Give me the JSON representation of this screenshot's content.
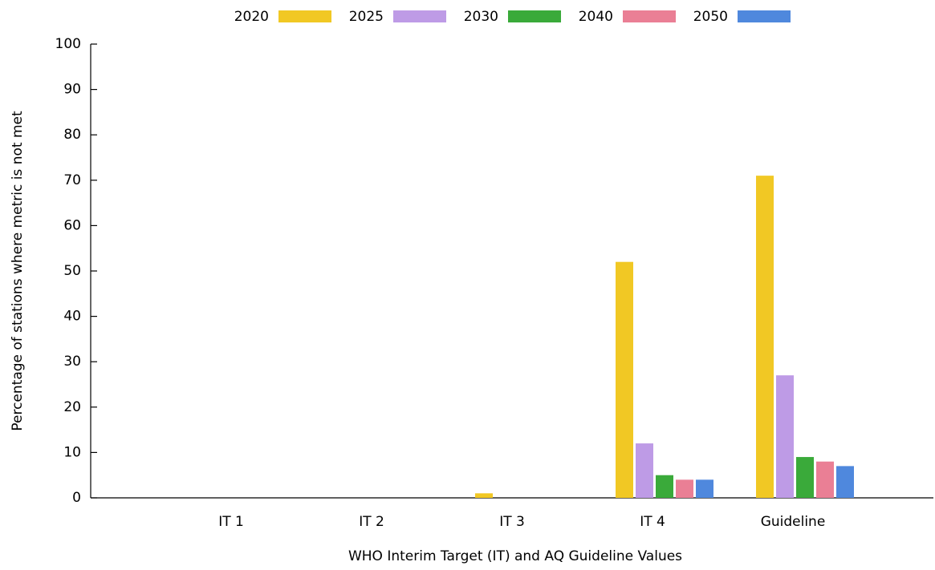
{
  "chart_data": {
    "type": "bar",
    "xlabel": "WHO Interim Target (IT) and AQ Guideline Values",
    "ylabel": "Percentage of stations where metric is not met",
    "categories": [
      "IT 1",
      "IT 2",
      "IT 3",
      "IT 4",
      "Guideline"
    ],
    "series": [
      {
        "name": "2020",
        "color": "#f1c824",
        "values": [
          0,
          0,
          1,
          52,
          71
        ]
      },
      {
        "name": "2025",
        "color": "#be9be6",
        "values": [
          0,
          0,
          0,
          12,
          27
        ]
      },
      {
        "name": "2030",
        "color": "#3aaa3a",
        "values": [
          0,
          0,
          0,
          5,
          9
        ]
      },
      {
        "name": "2040",
        "color": "#ea7f95",
        "values": [
          0,
          0,
          0,
          4,
          8
        ]
      },
      {
        "name": "2050",
        "color": "#4f88dd",
        "values": [
          0,
          0,
          0,
          4,
          7
        ]
      }
    ],
    "ylim": [
      0,
      100
    ],
    "yticks": [
      0,
      10,
      20,
      30,
      40,
      50,
      60,
      70,
      80,
      90,
      100
    ],
    "grid": false,
    "legend": "top"
  }
}
